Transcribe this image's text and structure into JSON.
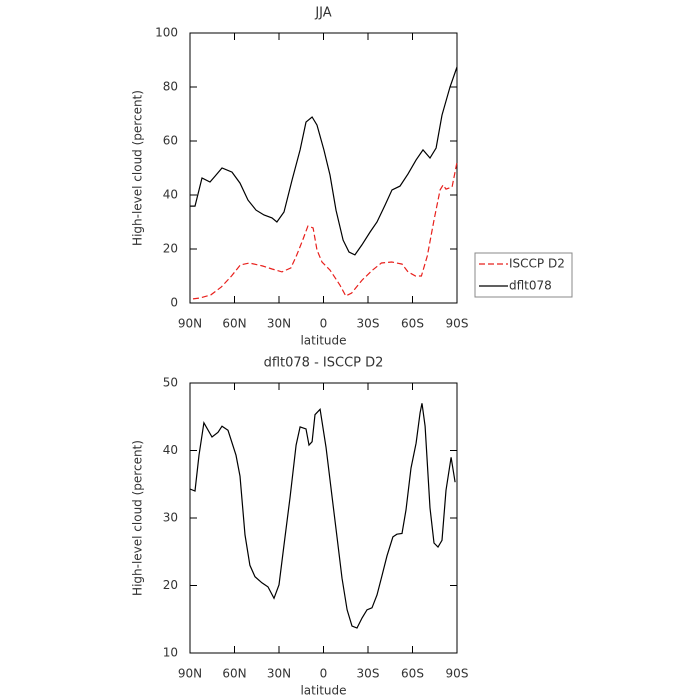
{
  "chart_data": [
    {
      "type": "line",
      "title": "JJA",
      "xlabel": "latitude",
      "ylabel": "High-level cloud (percent)",
      "xlim": [
        90,
        -90
      ],
      "xticks": [
        {
          "value": 90,
          "label": "90N"
        },
        {
          "value": 60,
          "label": "60N"
        },
        {
          "value": 30,
          "label": "30N"
        },
        0,
        {
          "value": -30,
          "label": "30S"
        },
        {
          "value": -60,
          "label": "60S"
        },
        {
          "value": -90,
          "label": "90S"
        }
      ],
      "ylim": [
        0,
        100
      ],
      "yticks": [
        0,
        20,
        40,
        60,
        80,
        100
      ],
      "legend": "right",
      "series": [
        {
          "name": "ISCCP D2",
          "color": "#e8201c",
          "dashed": true,
          "x": [
            88,
            83,
            76,
            69,
            62,
            56,
            50,
            41,
            34.7,
            28,
            22,
            18,
            14,
            10.5,
            7,
            4.4,
            1,
            -4.4,
            -11,
            -15,
            -19,
            -26,
            -33,
            -39,
            -46,
            -53,
            -57,
            -62,
            -66,
            -70,
            -74.5,
            -78.6,
            -80.6,
            -82.6,
            -86.7,
            -90
          ],
          "values": [
            1.5,
            1.9,
            3,
            5.9,
            10,
            14.1,
            14.8,
            13.7,
            12.6,
            11.5,
            13,
            17.8,
            23.3,
            28.5,
            27.8,
            19.6,
            15.2,
            12.2,
            6.7,
            2.6,
            3.7,
            8.5,
            12.2,
            14.8,
            15.2,
            14.4,
            11.5,
            10,
            10,
            17.4,
            30.7,
            41.9,
            43.7,
            42.2,
            43,
            52.2
          ]
        },
        {
          "name": "dflt078",
          "color": "#000000",
          "dashed": false,
          "x": [
            90,
            86.6,
            81.9,
            76.5,
            73.1,
            68.4,
            61.7,
            56.3,
            50.9,
            45.5,
            40.1,
            34.7,
            31.4,
            26.6,
            21.2,
            15.8,
            11.8,
            7.7,
            4.4,
            -0.3,
            -4.4,
            -8.4,
            -13.2,
            -17.2,
            -21.2,
            -25.9,
            -31.4,
            -36.1,
            -41.5,
            -46.2,
            -51.6,
            -57,
            -62.4,
            -67.1,
            -71.8,
            -75.9,
            -79.9,
            -85.3,
            -90
          ],
          "values": [
            35.9,
            35.9,
            46.3,
            44.8,
            47,
            50,
            48.5,
            44.4,
            38.1,
            34.4,
            32.6,
            31.5,
            30,
            33.7,
            45.6,
            56.7,
            67,
            68.9,
            65.9,
            56.7,
            47.4,
            34.4,
            23.3,
            18.9,
            17.8,
            21.5,
            26.3,
            30,
            36.3,
            41.9,
            43.3,
            47.8,
            53,
            56.7,
            53.7,
            57.4,
            69.6,
            80,
            87.4
          ]
        }
      ]
    },
    {
      "type": "line",
      "title": "dflt078 - ISCCP D2",
      "xlabel": "latitude",
      "ylabel": "High-level cloud (percent)",
      "xlim": [
        90,
        -90
      ],
      "xticks": [
        {
          "value": 90,
          "label": "90N"
        },
        {
          "value": 60,
          "label": "60N"
        },
        {
          "value": 30,
          "label": "30N"
        },
        0,
        {
          "value": -30,
          "label": "30S"
        },
        {
          "value": -60,
          "label": "60S"
        },
        {
          "value": -90,
          "label": "90S"
        }
      ],
      "ylim": [
        10,
        50
      ],
      "yticks": [
        10,
        20,
        30,
        40,
        50
      ],
      "color": "#000000",
      "x": [
        90,
        86.6,
        83.9,
        80.6,
        75.2,
        71.1,
        68.4,
        64.4,
        59,
        56.3,
        52.9,
        49.6,
        46.2,
        41.5,
        37.4,
        33.4,
        30,
        26.6,
        22.6,
        18.5,
        15.8,
        11.8,
        9.8,
        7.7,
        5.7,
        2.3,
        -1.7,
        -5.8,
        -9.1,
        -12.5,
        -15.9,
        -19.2,
        -22.6,
        -26,
        -29.3,
        -32.7,
        -36.1,
        -39.4,
        -42.8,
        -46.8,
        -49.5,
        -52.9,
        -55.6,
        -59,
        -62.4,
        -65.1,
        -66.4,
        -68.5,
        -71.8,
        -74.5,
        -77.2,
        -79.9,
        -82.6,
        -86,
        -88.7
      ],
      "values": [
        34.3,
        34,
        39.3,
        44.1,
        42,
        42.7,
        43.6,
        43,
        39.3,
        36.2,
        27.5,
        23,
        21.3,
        20.4,
        19.8,
        18.1,
        20.1,
        26,
        33,
        40.8,
        43.5,
        43.2,
        40.8,
        41.3,
        45.3,
        46.1,
        40.5,
        33.1,
        27.2,
        21.1,
        16.4,
        14,
        13.7,
        15.2,
        16.4,
        16.7,
        18.6,
        21.4,
        24.4,
        27.2,
        27.6,
        27.7,
        31.2,
        37.4,
        41.1,
        45.6,
        47,
        43.6,
        31.5,
        26.3,
        25.7,
        26.7,
        34.1,
        39,
        35.3
      ]
    }
  ]
}
